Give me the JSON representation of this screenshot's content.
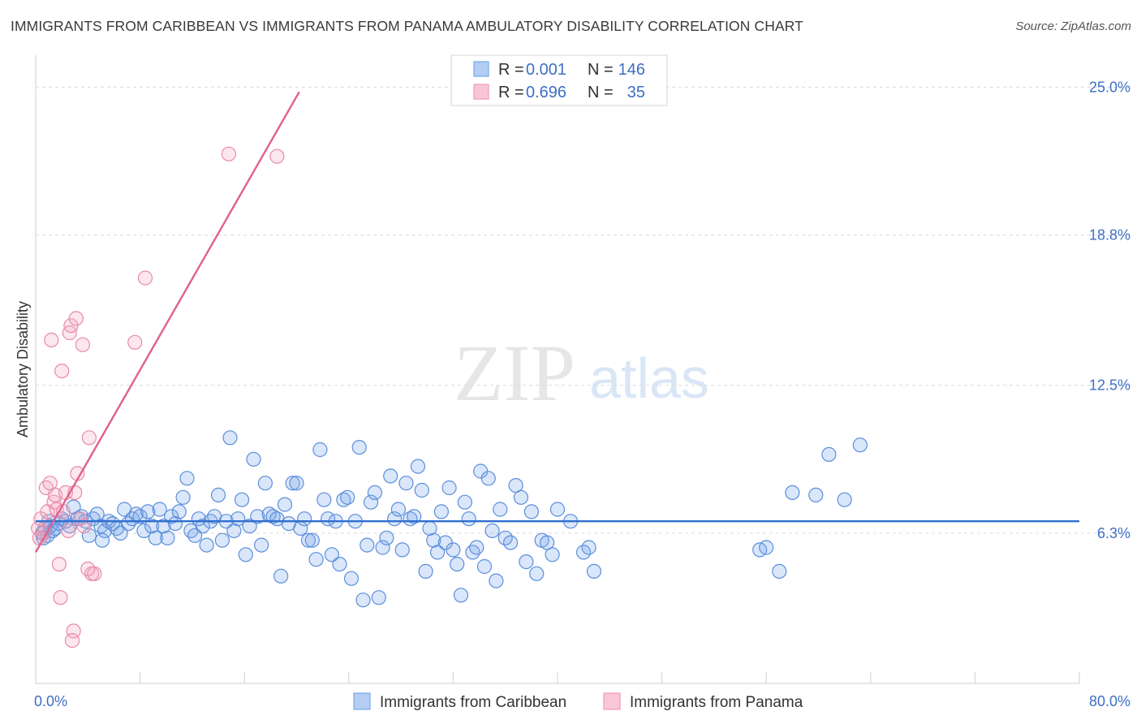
{
  "title": "IMMIGRANTS FROM CARIBBEAN VS IMMIGRANTS FROM PANAMA AMBULATORY DISABILITY CORRELATION CHART",
  "source": "Source: ZipAtlas.com",
  "watermark": {
    "zip": "ZIP",
    "atlas": "atlas"
  },
  "legend": [
    {
      "r_label": "R =",
      "r_value": "0.001",
      "n_label": "N =",
      "n_value": "146"
    },
    {
      "r_label": "R =",
      "r_value": "0.696",
      "n_label": "N =",
      "n_value": "35"
    }
  ],
  "chart_data": {
    "type": "scatter",
    "title": "IMMIGRANTS FROM CARIBBEAN VS IMMIGRANTS FROM PANAMA AMBULATORY DISABILITY CORRELATION CHART",
    "xlabel": "",
    "ylabel": "Ambulatory Disability",
    "xlim": [
      0,
      80
    ],
    "ylim": [
      0,
      26
    ],
    "x_tick_labels": [
      "0.0%",
      "80.0%"
    ],
    "y_ticks": [
      6.3,
      12.5,
      18.8,
      25.0
    ],
    "y_tick_labels": [
      "6.3%",
      "12.5%",
      "18.8%",
      "25.0%"
    ],
    "grid": true,
    "legend_position": "bottom",
    "series": [
      {
        "name": "Immigrants from Caribbean",
        "color": "#7aa7e8",
        "edge": "#5b8fdc",
        "trend": {
          "x": [
            0,
            80
          ],
          "y": [
            6.8,
            6.8
          ],
          "color": "#2f6fcf"
        },
        "points": [
          [
            0.5,
            6.3
          ],
          [
            0.7,
            6.5
          ],
          [
            0.9,
            6.2
          ],
          [
            1.1,
            6.6
          ],
          [
            1.3,
            6.4
          ],
          [
            0.6,
            6.1
          ],
          [
            1.0,
            6.8
          ],
          [
            1.5,
            6.5
          ],
          [
            1.8,
            6.7
          ],
          [
            2.0,
            6.9
          ],
          [
            2.3,
            6.8
          ],
          [
            2.6,
            6.6
          ],
          [
            2.9,
            7.4
          ],
          [
            3.2,
            6.9
          ],
          [
            3.5,
            7.0
          ],
          [
            3.8,
            6.8
          ],
          [
            4.1,
            6.2
          ],
          [
            4.4,
            6.9
          ],
          [
            4.7,
            7.1
          ],
          [
            5.0,
            6.6
          ],
          [
            5.3,
            6.4
          ],
          [
            5.6,
            6.8
          ],
          [
            5.9,
            6.7
          ],
          [
            6.2,
            6.5
          ],
          [
            6.5,
            6.3
          ],
          [
            6.8,
            7.3
          ],
          [
            7.1,
            6.7
          ],
          [
            7.4,
            6.9
          ],
          [
            7.7,
            7.1
          ],
          [
            8.0,
            7.0
          ],
          [
            8.3,
            6.4
          ],
          [
            8.6,
            7.2
          ],
          [
            8.9,
            6.6
          ],
          [
            9.2,
            6.1
          ],
          [
            9.5,
            7.3
          ],
          [
            9.8,
            6.6
          ],
          [
            10.1,
            6.1
          ],
          [
            10.4,
            7.0
          ],
          [
            10.7,
            6.7
          ],
          [
            11.0,
            7.2
          ],
          [
            11.3,
            7.8
          ],
          [
            11.6,
            8.6
          ],
          [
            11.9,
            6.4
          ],
          [
            12.2,
            6.2
          ],
          [
            12.5,
            6.9
          ],
          [
            12.8,
            6.6
          ],
          [
            13.1,
            5.8
          ],
          [
            13.4,
            6.8
          ],
          [
            13.7,
            7.0
          ],
          [
            14.0,
            7.9
          ],
          [
            14.3,
            6.0
          ],
          [
            14.6,
            6.8
          ],
          [
            14.9,
            10.3
          ],
          [
            15.2,
            6.4
          ],
          [
            15.5,
            6.9
          ],
          [
            15.8,
            7.7
          ],
          [
            16.1,
            5.4
          ],
          [
            16.4,
            6.6
          ],
          [
            16.7,
            9.4
          ],
          [
            17.0,
            7.0
          ],
          [
            17.3,
            5.8
          ],
          [
            17.6,
            8.4
          ],
          [
            17.9,
            7.1
          ],
          [
            18.2,
            7.0
          ],
          [
            18.5,
            6.9
          ],
          [
            18.8,
            4.5
          ],
          [
            19.1,
            7.5
          ],
          [
            19.4,
            6.7
          ],
          [
            19.7,
            8.4
          ],
          [
            20.0,
            8.4
          ],
          [
            20.3,
            6.5
          ],
          [
            20.6,
            6.9
          ],
          [
            20.9,
            6.0
          ],
          [
            21.2,
            6.0
          ],
          [
            21.5,
            5.2
          ],
          [
            21.8,
            9.8
          ],
          [
            22.1,
            7.7
          ],
          [
            22.4,
            6.9
          ],
          [
            22.7,
            5.4
          ],
          [
            23.0,
            6.8
          ],
          [
            23.3,
            5.0
          ],
          [
            23.6,
            7.7
          ],
          [
            23.9,
            7.8
          ],
          [
            24.2,
            4.4
          ],
          [
            24.5,
            6.8
          ],
          [
            24.8,
            9.9
          ],
          [
            25.1,
            3.5
          ],
          [
            25.4,
            5.8
          ],
          [
            25.7,
            7.6
          ],
          [
            26.0,
            8.0
          ],
          [
            26.3,
            3.6
          ],
          [
            26.6,
            5.7
          ],
          [
            26.9,
            6.1
          ],
          [
            27.2,
            8.7
          ],
          [
            27.5,
            6.9
          ],
          [
            27.8,
            7.3
          ],
          [
            28.1,
            5.6
          ],
          [
            28.4,
            8.4
          ],
          [
            28.7,
            6.9
          ],
          [
            29.0,
            7.0
          ],
          [
            29.3,
            9.1
          ],
          [
            29.6,
            8.1
          ],
          [
            29.9,
            4.7
          ],
          [
            30.2,
            6.5
          ],
          [
            30.5,
            6.0
          ],
          [
            30.8,
            5.5
          ],
          [
            31.1,
            7.2
          ],
          [
            31.4,
            5.9
          ],
          [
            31.7,
            8.2
          ],
          [
            32.0,
            5.6
          ],
          [
            32.3,
            5.0
          ],
          [
            32.6,
            3.7
          ],
          [
            32.9,
            7.6
          ],
          [
            33.2,
            6.9
          ],
          [
            33.5,
            5.5
          ],
          [
            33.8,
            5.7
          ],
          [
            34.1,
            8.9
          ],
          [
            34.4,
            4.9
          ],
          [
            34.7,
            8.6
          ],
          [
            35.0,
            6.4
          ],
          [
            35.3,
            4.3
          ],
          [
            35.6,
            7.3
          ],
          [
            36.0,
            6.1
          ],
          [
            36.4,
            5.9
          ],
          [
            36.8,
            8.3
          ],
          [
            37.2,
            7.8
          ],
          [
            37.6,
            5.1
          ],
          [
            38.0,
            7.2
          ],
          [
            38.4,
            4.6
          ],
          [
            38.8,
            6.0
          ],
          [
            39.2,
            5.9
          ],
          [
            39.6,
            5.4
          ],
          [
            40.0,
            7.3
          ],
          [
            41.0,
            6.8
          ],
          [
            42.0,
            5.5
          ],
          [
            42.4,
            5.7
          ],
          [
            42.8,
            4.7
          ],
          [
            58.0,
            8.0
          ],
          [
            59.8,
            7.9
          ],
          [
            60.8,
            9.6
          ],
          [
            62.0,
            7.7
          ],
          [
            63.2,
            10.0
          ],
          [
            55.5,
            5.6
          ],
          [
            56.0,
            5.7
          ],
          [
            57.0,
            4.7
          ],
          [
            5.1,
            6.0
          ]
        ]
      },
      {
        "name": "Immigrants from Panama",
        "color": "#f4a8bf",
        "edge": "#e88aa8",
        "trend": {
          "x": [
            0,
            20.2
          ],
          "y": [
            5.5,
            24.8
          ],
          "color": "#e0608e"
        },
        "points": [
          [
            0.2,
            6.5
          ],
          [
            0.4,
            6.9
          ],
          [
            0.6,
            6.3
          ],
          [
            0.8,
            8.2
          ],
          [
            0.9,
            7.2
          ],
          [
            1.1,
            8.4
          ],
          [
            1.2,
            14.4
          ],
          [
            1.4,
            7.6
          ],
          [
            1.5,
            7.9
          ],
          [
            1.6,
            7.3
          ],
          [
            1.8,
            5.0
          ],
          [
            1.9,
            3.6
          ],
          [
            2.0,
            13.1
          ],
          [
            2.1,
            7.2
          ],
          [
            2.3,
            8.0
          ],
          [
            2.5,
            6.4
          ],
          [
            2.6,
            14.7
          ],
          [
            2.7,
            15.0
          ],
          [
            2.9,
            2.2
          ],
          [
            3.1,
            15.3
          ],
          [
            3.2,
            8.8
          ],
          [
            3.4,
            6.9
          ],
          [
            3.6,
            14.2
          ],
          [
            4.1,
            10.3
          ],
          [
            4.3,
            4.6
          ],
          [
            4.5,
            4.6
          ],
          [
            3.7,
            6.6
          ],
          [
            2.8,
            1.8
          ],
          [
            3.0,
            8.0
          ],
          [
            7.6,
            14.3
          ],
          [
            8.4,
            17.0
          ],
          [
            14.8,
            22.2
          ],
          [
            18.5,
            22.1
          ],
          [
            4.0,
            4.8
          ],
          [
            0.3,
            6.1
          ]
        ]
      }
    ]
  }
}
